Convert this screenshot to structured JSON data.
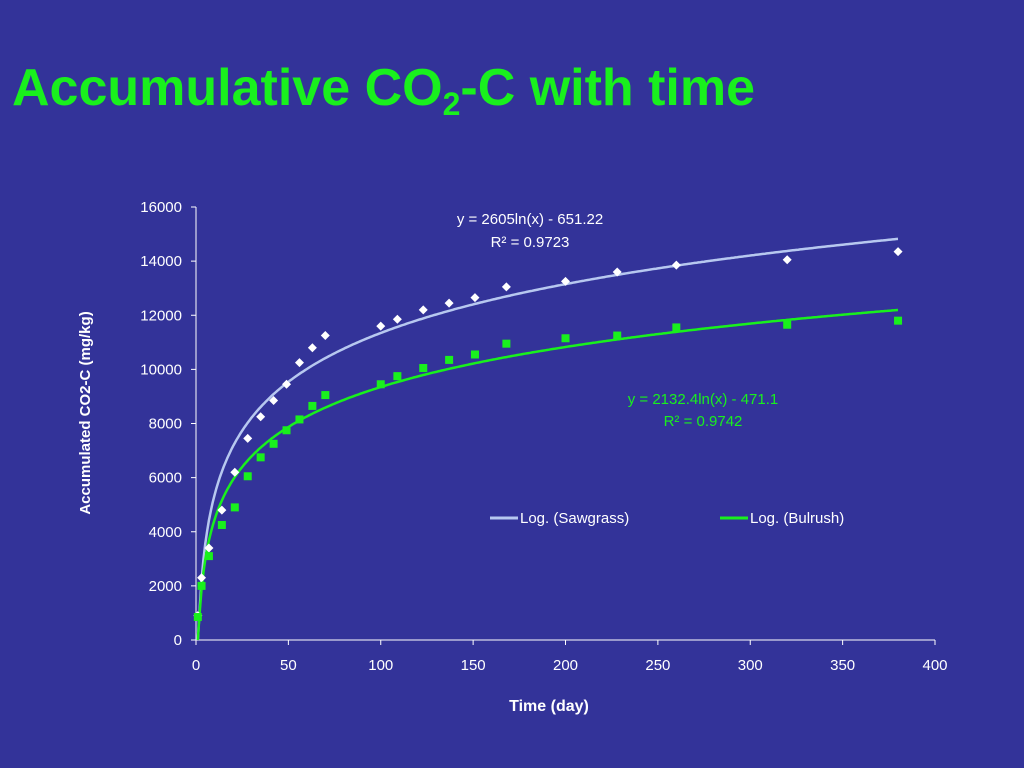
{
  "slide": {
    "title_main": "Accumulative CO",
    "title_sub": "2",
    "title_rest": "-C with time",
    "title_color": "#19f01d",
    "background": "#333399"
  },
  "chart_data": {
    "type": "scatter",
    "xlabel": "Time (day)",
    "ylabel": "Accumulated CO2-C (mg/kg)",
    "xlim": [
      0,
      400
    ],
    "ylim": [
      0,
      16000
    ],
    "xticks": [
      0,
      50,
      100,
      150,
      200,
      250,
      300,
      350,
      400
    ],
    "yticks": [
      0,
      2000,
      4000,
      6000,
      8000,
      10000,
      12000,
      14000,
      16000
    ],
    "grid": false,
    "legend_position": "right-middle",
    "series": [
      {
        "name": "Sawgrass",
        "marker": "diamond",
        "color": "#ffffff",
        "x": [
          1,
          3,
          7,
          14,
          21,
          28,
          35,
          42,
          49,
          56,
          63,
          70,
          100,
          109,
          123,
          137,
          151,
          168,
          200,
          228,
          260,
          320,
          380
        ],
        "y": [
          900,
          2300,
          3400,
          4800,
          6200,
          7450,
          8250,
          8850,
          9450,
          10250,
          10800,
          11250,
          11600,
          11850,
          12200,
          12450,
          12650,
          13050,
          13250,
          13600,
          13850,
          14050,
          14350
        ]
      },
      {
        "name": "Bulrush",
        "marker": "square",
        "color": "#19f01d",
        "x": [
          1,
          3,
          7,
          14,
          21,
          28,
          35,
          42,
          49,
          56,
          63,
          70,
          100,
          109,
          123,
          137,
          151,
          168,
          200,
          228,
          260,
          320,
          380
        ],
        "y": [
          850,
          2000,
          3100,
          4250,
          4900,
          6050,
          6750,
          7250,
          7750,
          8150,
          8650,
          9050,
          9450,
          9750,
          10050,
          10350,
          10550,
          10950,
          11150,
          11250,
          11550,
          11650,
          11800
        ]
      }
    ],
    "trendlines": [
      {
        "name": "Log. (Sawgrass)",
        "color": "#b7c8f0",
        "a": 2605,
        "b": -651.22,
        "equation": "y = 2605ln(x) - 651.22",
        "r2": "R² = 0.9723",
        "label_color": "#ffffff"
      },
      {
        "name": "Log. (Bulrush)",
        "color": "#19f01d",
        "a": 2132.4,
        "b": -471.1,
        "equation": "y = 2132.4ln(x) - 471.1",
        "r2": "R² = 0.9742",
        "label_color": "#19f01d"
      }
    ]
  }
}
